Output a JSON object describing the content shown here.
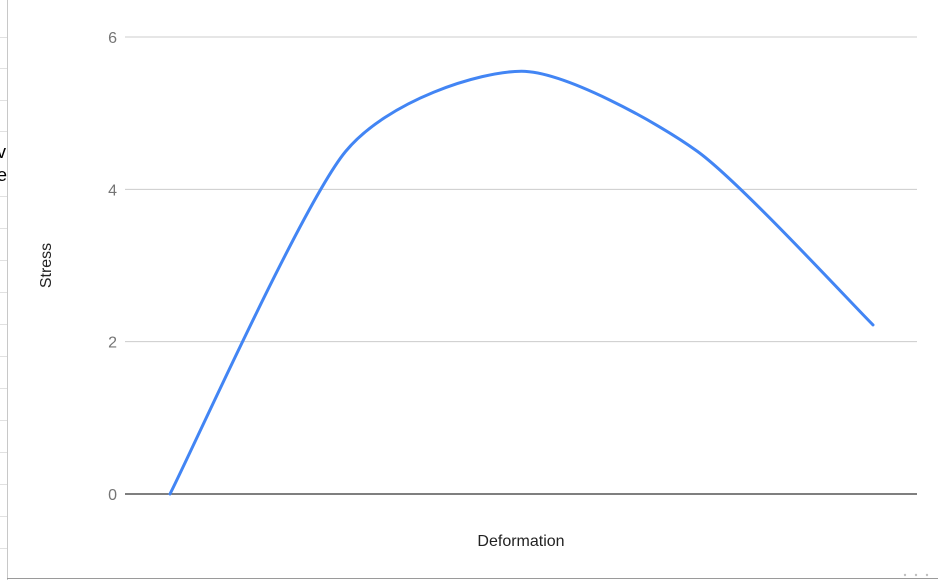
{
  "chart_data": {
    "type": "line",
    "title": "",
    "xlabel": "Deformation",
    "ylabel": "Stress",
    "ylim": [
      0,
      6
    ],
    "yticks": [
      "0",
      "2",
      "4",
      "6"
    ],
    "grid": true,
    "legend": "none",
    "series": [
      {
        "color": "#4285f4",
        "x": [
          0,
          1,
          2,
          3,
          4
        ],
        "values": [
          0,
          4.5,
          5.55,
          4.5,
          2.22
        ]
      }
    ]
  },
  "colors": {
    "line": "#4285f4",
    "grid": "#cccccc",
    "baseline": "#333333",
    "axis_text": "#757575"
  },
  "clipped_cells": [
    "v",
    "e"
  ]
}
